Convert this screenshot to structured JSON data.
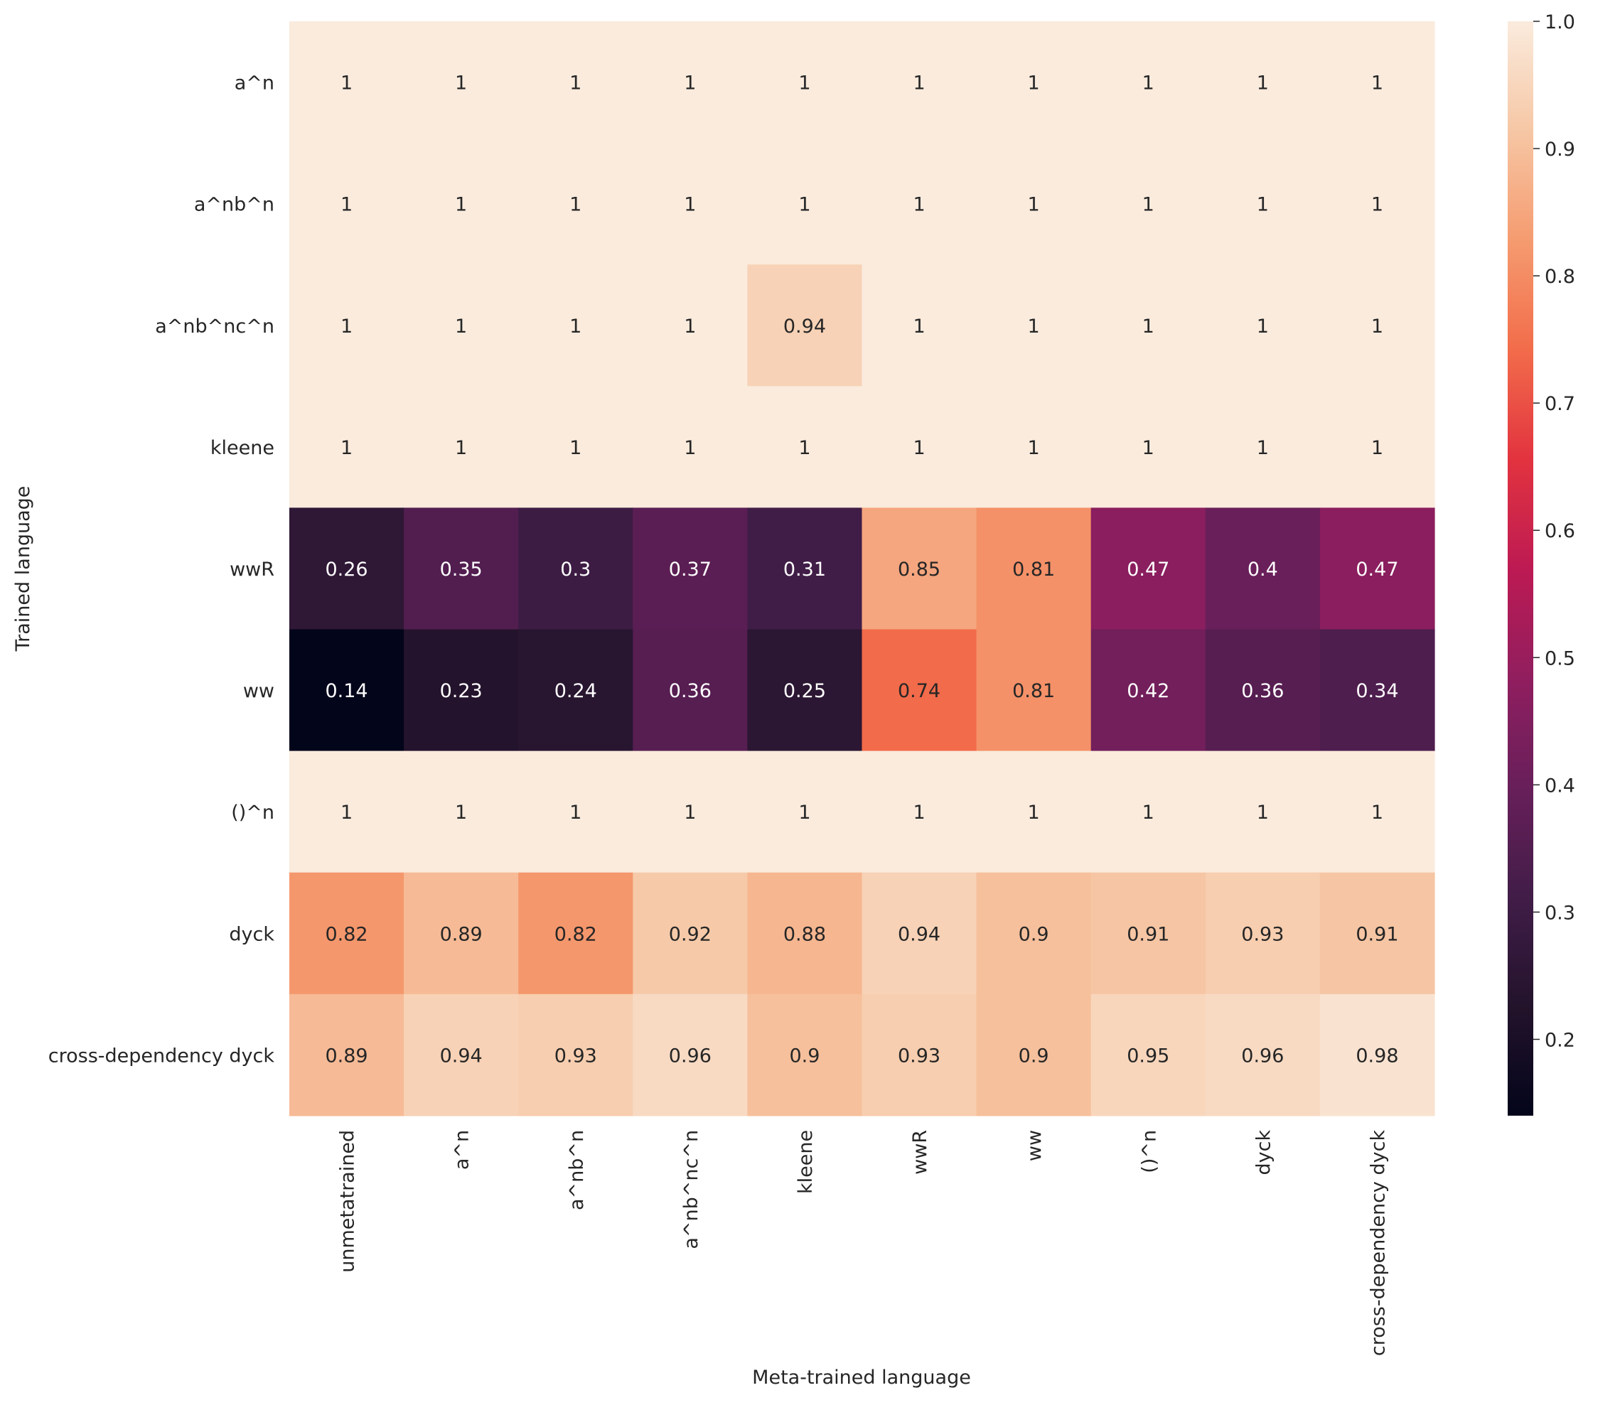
{
  "chart_data": {
    "type": "heatmap",
    "title": "",
    "xlabel": "Meta-trained language",
    "ylabel": "Trained language",
    "x_categories": [
      "unmetatrained",
      "a^n",
      "a^nb^n",
      "a^nb^nc^n",
      "kleene",
      "wwR",
      "ww",
      "()^n",
      "dyck",
      "cross-dependency dyck"
    ],
    "y_categories": [
      "a^n",
      "a^nb^n",
      "a^nb^nc^n",
      "kleene",
      "wwR",
      "ww",
      "()^n",
      "dyck",
      "cross-dependency dyck"
    ],
    "values": [
      [
        1,
        1,
        1,
        1,
        1,
        1,
        1,
        1,
        1,
        1
      ],
      [
        1,
        1,
        1,
        1,
        1,
        1,
        1,
        1,
        1,
        1
      ],
      [
        1,
        1,
        1,
        1,
        0.94,
        1,
        1,
        1,
        1,
        1
      ],
      [
        1,
        1,
        1,
        1,
        1,
        1,
        1,
        1,
        1,
        1
      ],
      [
        0.26,
        0.35,
        0.3,
        0.37,
        0.31,
        0.85,
        0.81,
        0.47,
        0.4,
        0.47
      ],
      [
        0.14,
        0.23,
        0.24,
        0.36,
        0.25,
        0.74,
        0.81,
        0.42,
        0.36,
        0.34
      ],
      [
        1,
        1,
        1,
        1,
        1,
        1,
        1,
        1,
        1,
        1
      ],
      [
        0.82,
        0.89,
        0.82,
        0.92,
        0.88,
        0.94,
        0.9,
        0.91,
        0.93,
        0.91
      ],
      [
        0.89,
        0.94,
        0.93,
        0.96,
        0.9,
        0.93,
        0.9,
        0.95,
        0.96,
        0.98
      ]
    ],
    "colorbar": {
      "range": [
        0.14,
        1.0
      ],
      "ticks": [
        0.2,
        0.3,
        0.4,
        0.5,
        0.6,
        0.7,
        0.8,
        0.9,
        1.0
      ],
      "tick_labels": [
        "0.2",
        "0.3",
        "0.4",
        "0.5",
        "0.6",
        "0.7",
        "0.8",
        "0.9",
        "1.0"
      ]
    },
    "colormap": "rocket",
    "annotations": true,
    "grid": false
  }
}
